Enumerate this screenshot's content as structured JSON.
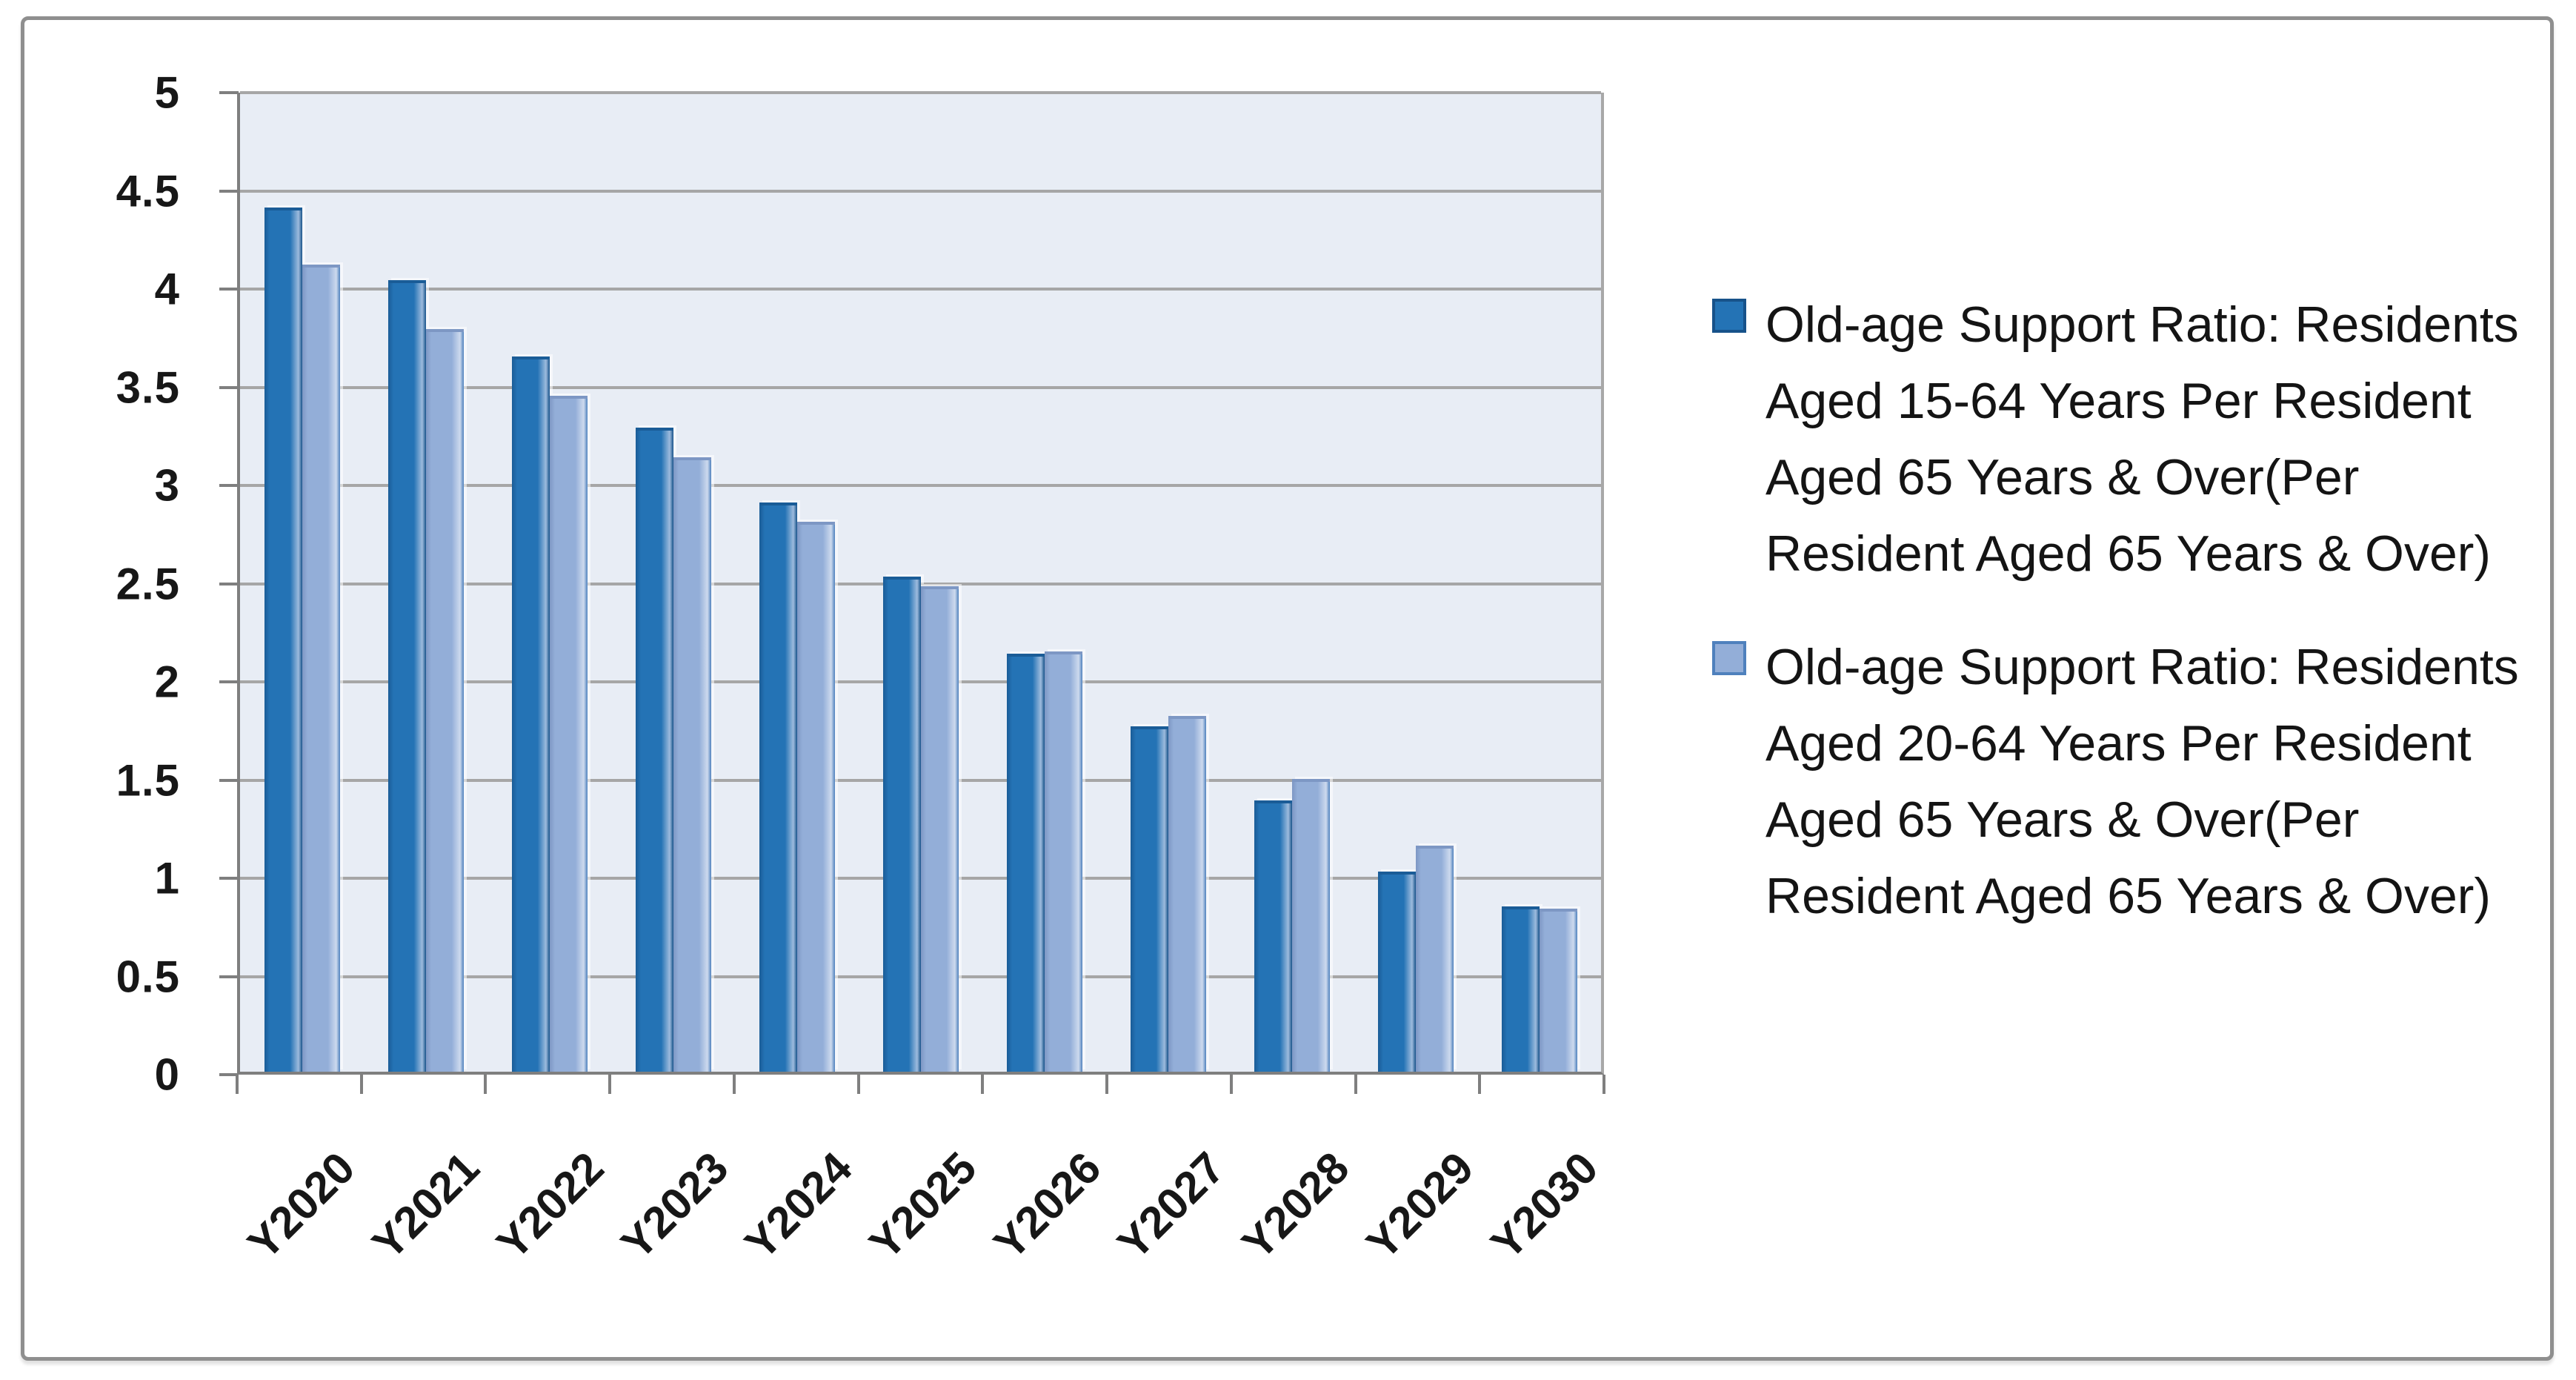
{
  "chart_data": {
    "type": "bar",
    "title": "",
    "xlabel": "",
    "ylabel": "",
    "categories": [
      "Y2020",
      "Y2021",
      "Y2022",
      "Y2023",
      "Y2024",
      "Y2025",
      "Y2026",
      "Y2027",
      "Y2028",
      "Y2029",
      "Y2030"
    ],
    "series": [
      {
        "name": "Old-age Support Ratio: Residents Aged 15-64 Years Per Resident Aged 65 Years & Over(Per Resident Aged 65 Years & Over)",
        "values": [
          4.4,
          4.03,
          3.64,
          3.28,
          2.9,
          2.52,
          2.13,
          1.76,
          1.38,
          1.02,
          0.84
        ],
        "fill": "#2473B5",
        "edge": "#1A5C97",
        "highlight": "#9DBBDD",
        "border": "#17528A"
      },
      {
        "name": "Old-age Support Ratio: Residents Aged 20-64 Years Per Resident Aged 65 Years & Over(Per Resident Aged 65 Years & Over)",
        "values": [
          4.11,
          3.78,
          3.44,
          3.13,
          2.8,
          2.47,
          2.14,
          1.81,
          1.49,
          1.15,
          0.83
        ],
        "fill": "#93AED8",
        "edge": "#7D97C4",
        "highlight": "#CDDAEE",
        "border": "#4F81BD"
      }
    ],
    "ylim": [
      0,
      5
    ],
    "ytick_step": 0.5,
    "y_tick_labels": [
      "5",
      "4.5",
      "4",
      "3.5",
      "3",
      "2.5",
      "2",
      "1.5",
      "1",
      "0.5",
      "0"
    ],
    "grid": true,
    "legend_position": "right",
    "style": {
      "plot_background": "#E8EDF5",
      "gridline_color": "#A6A6A6",
      "axis_color": "#7F7F7F",
      "frame_border_color": "#8F8F8F",
      "text_color": "#171717"
    }
  }
}
